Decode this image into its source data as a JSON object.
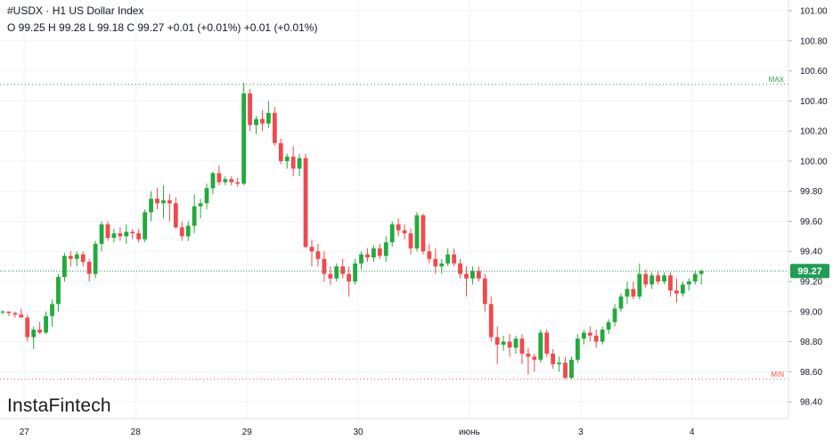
{
  "header": {
    "symbol": "#USDX",
    "separator": "·",
    "title": "H1 US Dollar Index",
    "ohlc": "O 99.25 H 99.28 L 99.18 C 99.27 +0.01 (+0.01%) +0.01 (+0.01%)"
  },
  "logo": "InstaFintech",
  "colors": {
    "up": "#26a69a",
    "down": "#ef5350",
    "up_candle": "#22ab3c",
    "down_candle": "#f0494e",
    "price_tag": "#1f9d55",
    "max_line": "#2e9e5b",
    "min_line": "#ef5350"
  },
  "chart_data": {
    "type": "candlestick",
    "x_ticks": [
      "27",
      "28",
      "29",
      "30",
      "июнь",
      "3",
      "4"
    ],
    "y_ticks": [
      "101.00",
      "100.80",
      "100.60",
      "100.40",
      "100.20",
      "100.00",
      "99.80",
      "99.60",
      "99.40",
      "99.20",
      "99.00",
      "98.80",
      "98.60",
      "98.40"
    ],
    "ylim": [
      98.35,
      101.05
    ],
    "max_label": "MAX",
    "max_value": 100.51,
    "min_label": "MIN",
    "min_value": 98.55,
    "last_price": "99.27",
    "last_value": 99.27,
    "candles": [
      [
        99.0,
        99.01,
        98.98,
        99.0
      ],
      [
        99.0,
        99.0,
        98.97,
        98.99
      ],
      [
        98.99,
        99.0,
        98.96,
        98.98
      ],
      [
        98.98,
        99.02,
        98.97,
        98.96
      ],
      [
        98.96,
        98.98,
        98.8,
        98.83
      ],
      [
        98.83,
        98.9,
        98.75,
        98.88
      ],
      [
        98.88,
        98.93,
        98.85,
        98.86
      ],
      [
        98.86,
        99.0,
        98.85,
        98.97
      ],
      [
        98.97,
        99.08,
        98.9,
        99.05
      ],
      [
        99.05,
        99.25,
        99.0,
        99.23
      ],
      [
        99.23,
        99.39,
        99.2,
        99.37
      ],
      [
        99.37,
        99.4,
        99.3,
        99.35
      ],
      [
        99.35,
        99.4,
        99.3,
        99.38
      ],
      [
        99.38,
        99.4,
        99.3,
        99.33
      ],
      [
        99.33,
        99.35,
        99.2,
        99.25
      ],
      [
        99.25,
        99.47,
        99.22,
        99.45
      ],
      [
        99.45,
        99.6,
        99.4,
        99.58
      ],
      [
        99.58,
        99.6,
        99.47,
        99.49
      ],
      [
        99.49,
        99.55,
        99.46,
        99.52
      ],
      [
        99.52,
        99.56,
        99.47,
        99.5
      ],
      [
        99.5,
        99.58,
        99.45,
        99.53
      ],
      [
        99.53,
        99.55,
        99.48,
        99.52
      ],
      [
        99.52,
        99.55,
        99.46,
        99.48
      ],
      [
        99.48,
        99.68,
        99.46,
        99.66
      ],
      [
        99.66,
        99.8,
        99.6,
        99.75
      ],
      [
        99.75,
        99.82,
        99.68,
        99.72
      ],
      [
        99.72,
        99.84,
        99.62,
        99.74
      ],
      [
        99.74,
        99.78,
        99.6,
        99.72
      ],
      [
        99.72,
        99.76,
        99.55,
        99.56
      ],
      [
        99.56,
        99.6,
        99.47,
        99.5
      ],
      [
        99.5,
        99.6,
        99.47,
        99.57
      ],
      [
        99.57,
        99.78,
        99.52,
        99.7
      ],
      [
        99.7,
        99.75,
        99.62,
        99.72
      ],
      [
        99.72,
        99.85,
        99.68,
        99.82
      ],
      [
        99.82,
        99.93,
        99.78,
        99.92
      ],
      [
        99.92,
        99.97,
        99.84,
        99.86
      ],
      [
        99.86,
        99.9,
        99.84,
        99.88
      ],
      [
        99.88,
        99.9,
        99.84,
        99.86
      ],
      [
        99.86,
        99.89,
        99.83,
        99.85
      ],
      [
        99.85,
        100.52,
        99.84,
        100.45
      ],
      [
        100.45,
        100.48,
        100.2,
        100.24
      ],
      [
        100.24,
        100.3,
        100.18,
        100.28
      ],
      [
        100.28,
        100.34,
        100.2,
        100.25
      ],
      [
        100.25,
        100.4,
        100.22,
        100.32
      ],
      [
        100.32,
        100.36,
        100.1,
        100.12
      ],
      [
        100.12,
        100.15,
        99.98,
        100.0
      ],
      [
        100.0,
        100.05,
        99.95,
        100.03
      ],
      [
        100.03,
        100.1,
        99.9,
        99.95
      ],
      [
        99.95,
        100.05,
        99.9,
        100.02
      ],
      [
        100.02,
        100.05,
        99.42,
        99.43
      ],
      [
        99.43,
        99.48,
        99.3,
        99.4
      ],
      [
        99.4,
        99.45,
        99.3,
        99.35
      ],
      [
        99.35,
        99.4,
        99.2,
        99.25
      ],
      [
        99.25,
        99.3,
        99.18,
        99.22
      ],
      [
        99.22,
        99.32,
        99.2,
        99.3
      ],
      [
        99.3,
        99.35,
        99.22,
        99.25
      ],
      [
        99.25,
        99.3,
        99.1,
        99.2
      ],
      [
        99.2,
        99.35,
        99.18,
        99.32
      ],
      [
        99.32,
        99.4,
        99.28,
        99.38
      ],
      [
        99.38,
        99.42,
        99.33,
        99.36
      ],
      [
        99.36,
        99.44,
        99.33,
        99.42
      ],
      [
        99.42,
        99.45,
        99.35,
        99.37
      ],
      [
        99.37,
        99.5,
        99.33,
        99.46
      ],
      [
        99.46,
        99.6,
        99.43,
        99.58
      ],
      [
        99.58,
        99.62,
        99.5,
        99.54
      ],
      [
        99.54,
        99.58,
        99.48,
        99.52
      ],
      [
        99.52,
        99.55,
        99.38,
        99.42
      ],
      [
        99.42,
        99.66,
        99.4,
        99.64
      ],
      [
        99.64,
        99.65,
        99.38,
        99.4
      ],
      [
        99.4,
        99.45,
        99.32,
        99.35
      ],
      [
        99.35,
        99.42,
        99.25,
        99.3
      ],
      [
        99.3,
        99.35,
        99.25,
        99.32
      ],
      [
        99.32,
        99.42,
        99.3,
        99.38
      ],
      [
        99.38,
        99.42,
        99.3,
        99.32
      ],
      [
        99.32,
        99.35,
        99.22,
        99.25
      ],
      [
        99.25,
        99.3,
        99.1,
        99.22
      ],
      [
        99.22,
        99.3,
        99.18,
        99.27
      ],
      [
        99.27,
        99.3,
        99.2,
        99.22
      ],
      [
        99.22,
        99.25,
        99.0,
        99.05
      ],
      [
        99.05,
        99.1,
        98.8,
        98.83
      ],
      [
        98.83,
        98.9,
        98.65,
        98.78
      ],
      [
        98.78,
        98.84,
        98.74,
        98.8
      ],
      [
        98.8,
        98.85,
        98.7,
        98.76
      ],
      [
        98.76,
        98.84,
        98.72,
        98.82
      ],
      [
        98.82,
        98.85,
        98.65,
        98.72
      ],
      [
        98.72,
        98.76,
        98.58,
        98.7
      ],
      [
        98.7,
        98.72,
        98.6,
        98.68
      ],
      [
        98.68,
        98.88,
        98.66,
        98.86
      ],
      [
        98.86,
        98.88,
        98.7,
        98.72
      ],
      [
        98.72,
        98.75,
        98.62,
        98.65
      ],
      [
        98.65,
        98.7,
        98.6,
        98.66
      ],
      [
        98.66,
        98.7,
        98.55,
        98.56
      ],
      [
        98.56,
        98.7,
        98.55,
        98.68
      ],
      [
        98.68,
        98.85,
        98.66,
        98.82
      ],
      [
        98.82,
        98.88,
        98.78,
        98.86
      ],
      [
        98.86,
        98.9,
        98.8,
        98.84
      ],
      [
        98.84,
        98.88,
        98.76,
        98.8
      ],
      [
        98.8,
        98.9,
        98.78,
        98.88
      ],
      [
        98.88,
        98.95,
        98.85,
        98.93
      ],
      [
        98.93,
        99.05,
        98.9,
        99.02
      ],
      [
        99.02,
        99.12,
        99.0,
        99.1
      ],
      [
        99.1,
        99.2,
        99.05,
        99.15
      ],
      [
        99.15,
        99.2,
        99.08,
        99.1
      ],
      [
        99.1,
        99.32,
        99.08,
        99.25
      ],
      [
        99.25,
        99.28,
        99.16,
        99.18
      ],
      [
        99.18,
        99.26,
        99.15,
        99.24
      ],
      [
        99.24,
        99.27,
        99.18,
        99.2
      ],
      [
        99.2,
        99.26,
        99.18,
        99.24
      ],
      [
        99.24,
        99.26,
        99.1,
        99.14
      ],
      [
        99.14,
        99.22,
        99.06,
        99.12
      ],
      [
        99.12,
        99.2,
        99.1,
        99.18
      ],
      [
        99.18,
        99.22,
        99.14,
        99.2
      ],
      [
        99.2,
        99.27,
        99.18,
        99.25
      ],
      [
        99.25,
        99.28,
        99.18,
        99.27
      ]
    ]
  }
}
